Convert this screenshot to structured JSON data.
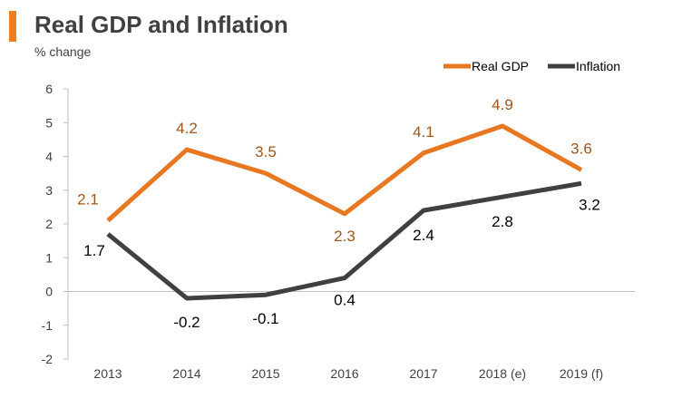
{
  "colors": {
    "accent": "#ef7d22",
    "real_gdp": "#e87722",
    "real_gdp_label": "#a0561a",
    "inflation": "#404040",
    "inflation_label": "#000000",
    "axis": "#bfbfbf",
    "text": "#404040"
  },
  "chart_data": {
    "type": "line",
    "title": "Real GDP and Inflation",
    "ylabel": "% change",
    "xlabel": "",
    "categories": [
      "2013",
      "2014",
      "2015",
      "2016",
      "2017",
      "2018 (e)",
      "2019 (f)"
    ],
    "ylim": [
      -2,
      6
    ],
    "yticks": [
      "-2",
      "-1",
      "0",
      "1",
      "2",
      "3",
      "4",
      "5",
      "6"
    ],
    "grid": false,
    "legend": "top-right",
    "series": [
      {
        "name": "Real GDP",
        "values": [
          2.1,
          4.2,
          3.5,
          2.3,
          4.1,
          4.9,
          3.6
        ],
        "labels": [
          "2.1",
          "4.2",
          "3.5",
          "2.3",
          "4.1",
          "4.9",
          "3.6"
        ]
      },
      {
        "name": "Inflation",
        "values": [
          1.7,
          -0.2,
          -0.1,
          0.4,
          2.4,
          2.8,
          3.2
        ],
        "labels": [
          "1.7",
          "-0.2",
          "-0.1",
          "0.4",
          "2.4",
          "2.8",
          "3.2"
        ]
      }
    ]
  }
}
